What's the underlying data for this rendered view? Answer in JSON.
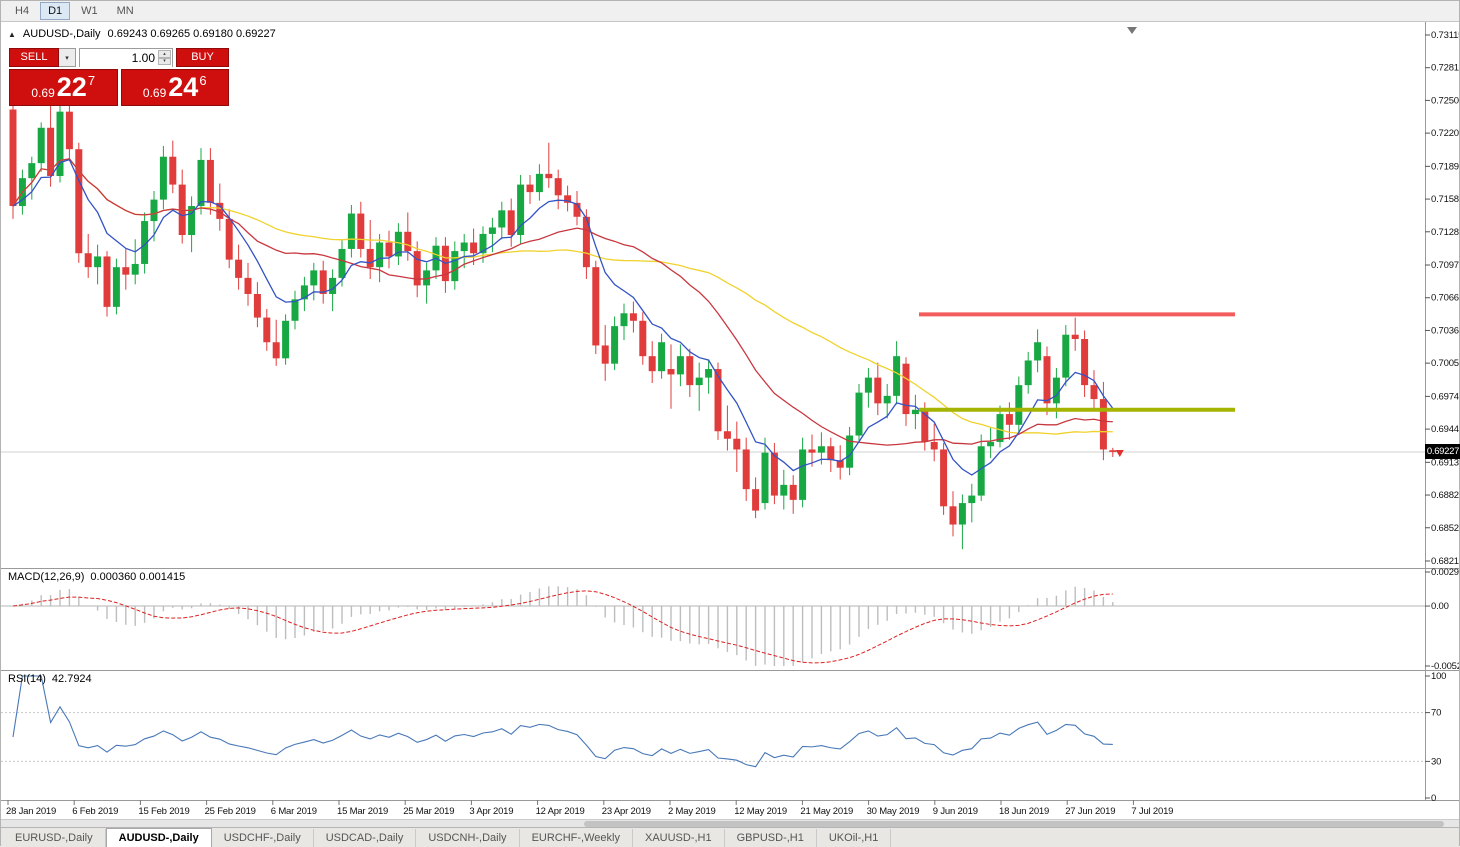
{
  "toolbar": {
    "timeframes": [
      "H4",
      "D1",
      "W1",
      "MN"
    ],
    "active": "D1"
  },
  "chart_header": {
    "symbol": "AUDUSD-,Daily",
    "ohlc": "0.69243 0.69265 0.69180 0.69227"
  },
  "icons": {
    "chart_marker": "▲",
    "chevron_down": "▾",
    "spin_up": "▴",
    "spin_down": "▾"
  },
  "one_click": {
    "sell_label": "SELL",
    "buy_label": "BUY",
    "volume": "1.00",
    "accent_red": "#cf0e0e",
    "bid": {
      "prefix": "0.69",
      "big": "22",
      "sup": "7"
    },
    "ask": {
      "prefix": "0.69",
      "big": "24",
      "sup": "6"
    }
  },
  "price_axis": {
    "labels": [
      "0.73115",
      "0.72810",
      "0.72505",
      "0.72200",
      "0.71890",
      "0.71585",
      "0.71280",
      "0.70970",
      "0.70665",
      "0.70360",
      "0.70055",
      "0.69745",
      "0.69440",
      "0.69130",
      "0.68825",
      "0.68520",
      "0.68210"
    ],
    "current_price": "0.69227"
  },
  "macd_panel": {
    "title": "MACD(12,26,9)",
    "values": "0.000360 0.001415",
    "axis_labels": [
      "0.00298",
      "0.00",
      "-0.00525"
    ]
  },
  "rsi_panel": {
    "title": "RSI(14)",
    "value": "42.7924",
    "axis_labels": [
      "100",
      "70",
      "30",
      "0"
    ],
    "levels": [
      70,
      30
    ]
  },
  "date_axis": {
    "labels": [
      "28 Jan 2019",
      "6 Feb 2019",
      "15 Feb 2019",
      "25 Feb 2019",
      "6 Mar 2019",
      "15 Mar 2019",
      "25 Mar 2019",
      "3 Apr 2019",
      "12 Apr 2019",
      "23 Apr 2019",
      "2 May 2019",
      "12 May 2019",
      "21 May 2019",
      "30 May 2019",
      "9 Jun 2019",
      "18 Jun 2019",
      "27 Jun 2019",
      "7 Jul 2019"
    ]
  },
  "tabs": {
    "items": [
      "EURUSD-,Daily",
      "AUDUSD-,Daily",
      "USDCHF-,Daily",
      "USDCAD-,Daily",
      "USDCNH-,Daily",
      "EURCHF-,Weekly",
      "XAUUSD-,H1",
      "GBPUSD-,H1",
      "UKOil-,H1"
    ],
    "active": "AUDUSD-,Daily"
  },
  "chart_data": {
    "type": "candlestick",
    "symbol": "AUDUSD-",
    "timeframe": "Daily",
    "y_axis": {
      "top": 0.73115,
      "bottom": 0.6821
    },
    "bid": 0.69227,
    "bull_color": "#18a843",
    "bear_color": "#e03c3c",
    "bid_line_color": "#d2d2d2",
    "horizontal_lines": [
      {
        "name": "resistance-line",
        "price": 0.7051,
        "color": "#f25c5c",
        "width": 4
      },
      {
        "name": "support-line",
        "price": 0.6962,
        "color": "#a4b400",
        "width": 4
      }
    ],
    "moving_averages": [
      {
        "name": "fast-ma-line",
        "method": "ema",
        "period": 8,
        "color": "#3353c5"
      },
      {
        "name": "medium-ma-line",
        "method": "sma",
        "period": 20,
        "color": "#c8373f"
      },
      {
        "name": "slow-ma-line",
        "method": "sma",
        "period": 40,
        "color": "#f0d22e"
      }
    ],
    "macd": {
      "fast": 12,
      "slow": 26,
      "signal": 9,
      "range": [
        -0.00525,
        0.00298
      ],
      "histogram_color": "#bdbdbd",
      "signal_color": "#dd2222"
    },
    "rsi": {
      "period": 14,
      "range": [
        0,
        100
      ],
      "color": "#4878b8",
      "level_color": "#c8c8c8"
    },
    "candles": [
      [
        0.7242,
        0.7249,
        0.714,
        0.7152
      ],
      [
        0.7152,
        0.7186,
        0.7144,
        0.7178
      ],
      [
        0.7178,
        0.7198,
        0.7158,
        0.7192
      ],
      [
        0.7192,
        0.723,
        0.7184,
        0.7225
      ],
      [
        0.7225,
        0.7248,
        0.717,
        0.718
      ],
      [
        0.718,
        0.7246,
        0.7174,
        0.724
      ],
      [
        0.724,
        0.7246,
        0.7194,
        0.7205
      ],
      [
        0.7205,
        0.7211,
        0.7099,
        0.7108
      ],
      [
        0.7108,
        0.7126,
        0.7085,
        0.7095
      ],
      [
        0.7095,
        0.7116,
        0.7079,
        0.7105
      ],
      [
        0.7105,
        0.711,
        0.7049,
        0.7058
      ],
      [
        0.7058,
        0.7103,
        0.7051,
        0.7095
      ],
      [
        0.7095,
        0.7112,
        0.7074,
        0.7088
      ],
      [
        0.7088,
        0.7121,
        0.7079,
        0.7098
      ],
      [
        0.7098,
        0.7146,
        0.7089,
        0.7138
      ],
      [
        0.7138,
        0.7166,
        0.7119,
        0.7158
      ],
      [
        0.7158,
        0.7208,
        0.7149,
        0.7198
      ],
      [
        0.7198,
        0.7213,
        0.7164,
        0.7172
      ],
      [
        0.7172,
        0.7186,
        0.7117,
        0.7125
      ],
      [
        0.7125,
        0.7161,
        0.7109,
        0.7152
      ],
      [
        0.7152,
        0.7206,
        0.7144,
        0.7195
      ],
      [
        0.7195,
        0.7206,
        0.7144,
        0.7155
      ],
      [
        0.7155,
        0.7173,
        0.7129,
        0.714
      ],
      [
        0.714,
        0.7149,
        0.7094,
        0.7102
      ],
      [
        0.7102,
        0.7116,
        0.7074,
        0.7085
      ],
      [
        0.7085,
        0.7099,
        0.7059,
        0.707
      ],
      [
        0.707,
        0.7081,
        0.7039,
        0.7048
      ],
      [
        0.7048,
        0.7056,
        0.7017,
        0.7025
      ],
      [
        0.7025,
        0.7046,
        0.7003,
        0.701
      ],
      [
        0.701,
        0.7051,
        0.7004,
        0.7045
      ],
      [
        0.7045,
        0.7073,
        0.7037,
        0.7065
      ],
      [
        0.7065,
        0.7086,
        0.7054,
        0.7078
      ],
      [
        0.7078,
        0.7099,
        0.7064,
        0.7092
      ],
      [
        0.7092,
        0.7101,
        0.7061,
        0.707
      ],
      [
        0.707,
        0.7093,
        0.7054,
        0.7085
      ],
      [
        0.7085,
        0.7121,
        0.7077,
        0.7112
      ],
      [
        0.7112,
        0.7153,
        0.7104,
        0.7145
      ],
      [
        0.7145,
        0.7156,
        0.7104,
        0.7112
      ],
      [
        0.7112,
        0.7139,
        0.7084,
        0.7095
      ],
      [
        0.7095,
        0.7126,
        0.7081,
        0.7118
      ],
      [
        0.7118,
        0.7129,
        0.7094,
        0.7105
      ],
      [
        0.7105,
        0.7136,
        0.7097,
        0.7128
      ],
      [
        0.7128,
        0.7146,
        0.7101,
        0.711
      ],
      [
        0.711,
        0.7119,
        0.7067,
        0.7078
      ],
      [
        0.7078,
        0.7099,
        0.7061,
        0.7092
      ],
      [
        0.7092,
        0.7123,
        0.7084,
        0.7115
      ],
      [
        0.7115,
        0.7123,
        0.7071,
        0.7082
      ],
      [
        0.7082,
        0.7119,
        0.7074,
        0.711
      ],
      [
        0.711,
        0.7126,
        0.7094,
        0.7118
      ],
      [
        0.7118,
        0.7131,
        0.7097,
        0.7108
      ],
      [
        0.7108,
        0.7133,
        0.7099,
        0.7126
      ],
      [
        0.7126,
        0.7141,
        0.7109,
        0.7132
      ],
      [
        0.7132,
        0.7156,
        0.7121,
        0.7148
      ],
      [
        0.7148,
        0.7159,
        0.7114,
        0.7125
      ],
      [
        0.7125,
        0.7181,
        0.7117,
        0.7172
      ],
      [
        0.7172,
        0.7181,
        0.7154,
        0.7165
      ],
      [
        0.7165,
        0.7191,
        0.7157,
        0.7182
      ],
      [
        0.7182,
        0.7211,
        0.7169,
        0.7178
      ],
      [
        0.7178,
        0.7186,
        0.7149,
        0.7162
      ],
      [
        0.7162,
        0.7171,
        0.7147,
        0.7155
      ],
      [
        0.7155,
        0.7166,
        0.7134,
        0.7142
      ],
      [
        0.7142,
        0.7149,
        0.7084,
        0.7095
      ],
      [
        0.7095,
        0.7101,
        0.7014,
        0.7022
      ],
      [
        0.7022,
        0.7041,
        0.6989,
        0.7005
      ],
      [
        0.7005,
        0.7049,
        0.6999,
        0.704
      ],
      [
        0.704,
        0.7061,
        0.7027,
        0.7052
      ],
      [
        0.7052,
        0.7063,
        0.7034,
        0.7045
      ],
      [
        0.7045,
        0.7053,
        0.7004,
        0.7012
      ],
      [
        0.7012,
        0.7026,
        0.6987,
        0.6998
      ],
      [
        0.6998,
        0.7033,
        0.6991,
        0.7025
      ],
      [
        0.7,
        0.7023,
        0.6963,
        0.6995
      ],
      [
        0.6995,
        0.7023,
        0.6984,
        0.7012
      ],
      [
        0.7012,
        0.7019,
        0.6974,
        0.6985
      ],
      [
        0.6985,
        0.7006,
        0.6961,
        0.6992
      ],
      [
        0.6992,
        0.7009,
        0.6977,
        0.7
      ],
      [
        0.7,
        0.7006,
        0.6934,
        0.6942
      ],
      [
        0.6942,
        0.6966,
        0.6924,
        0.6935
      ],
      [
        0.6935,
        0.6951,
        0.6904,
        0.6925
      ],
      [
        0.6925,
        0.6936,
        0.6877,
        0.6888
      ],
      [
        0.6888,
        0.6899,
        0.6861,
        0.6868
      ],
      [
        0.6875,
        0.6936,
        0.6869,
        0.6922
      ],
      [
        0.6922,
        0.6931,
        0.6874,
        0.6882
      ],
      [
        0.6882,
        0.6906,
        0.6869,
        0.6892
      ],
      [
        0.6892,
        0.6901,
        0.6865,
        0.6878
      ],
      [
        0.6878,
        0.6936,
        0.6871,
        0.6925
      ],
      [
        0.6925,
        0.6939,
        0.6909,
        0.6922
      ],
      [
        0.6922,
        0.6941,
        0.6911,
        0.6928
      ],
      [
        0.6928,
        0.6936,
        0.6904,
        0.6915
      ],
      [
        0.6915,
        0.6929,
        0.6897,
        0.6908
      ],
      [
        0.6908,
        0.6946,
        0.6901,
        0.6938
      ],
      [
        0.6938,
        0.6986,
        0.6931,
        0.6978
      ],
      [
        0.6978,
        0.7001,
        0.6964,
        0.6992
      ],
      [
        0.6992,
        0.7006,
        0.6957,
        0.6968
      ],
      [
        0.6968,
        0.6986,
        0.6954,
        0.6975
      ],
      [
        0.6975,
        0.7026,
        0.6967,
        0.7012
      ],
      [
        0.7005,
        0.7011,
        0.6947,
        0.6958
      ],
      [
        0.6958,
        0.6976,
        0.6944,
        0.6962
      ],
      [
        0.6962,
        0.6969,
        0.6924,
        0.6932
      ],
      [
        0.6932,
        0.6949,
        0.6914,
        0.6925
      ],
      [
        0.6925,
        0.6931,
        0.6864,
        0.6872
      ],
      [
        0.6872,
        0.6886,
        0.6844,
        0.6855
      ],
      [
        0.6855,
        0.6883,
        0.6832,
        0.6875
      ],
      [
        0.6875,
        0.6893,
        0.6857,
        0.6882
      ],
      [
        0.6882,
        0.6939,
        0.6877,
        0.6928
      ],
      [
        0.6928,
        0.6946,
        0.6917,
        0.6932
      ],
      [
        0.6932,
        0.6966,
        0.6927,
        0.6958
      ],
      [
        0.6958,
        0.6969,
        0.6934,
        0.6948
      ],
      [
        0.6948,
        0.6993,
        0.6941,
        0.6985
      ],
      [
        0.6985,
        0.7016,
        0.6977,
        0.7008
      ],
      [
        0.7008,
        0.7037,
        0.6997,
        0.7025
      ],
      [
        0.7012,
        0.7021,
        0.6957,
        0.6968
      ],
      [
        0.6968,
        0.7001,
        0.6954,
        0.6992
      ],
      [
        0.6992,
        0.7041,
        0.6984,
        0.7032
      ],
      [
        0.7032,
        0.7048,
        0.7017,
        0.7028
      ],
      [
        0.7028,
        0.7036,
        0.6974,
        0.6985
      ],
      [
        0.6985,
        0.6999,
        0.6961,
        0.6972
      ],
      [
        0.6972,
        0.6988,
        0.6915,
        0.6925
      ],
      [
        0.69243,
        0.69265,
        0.6918,
        0.69227
      ]
    ]
  }
}
